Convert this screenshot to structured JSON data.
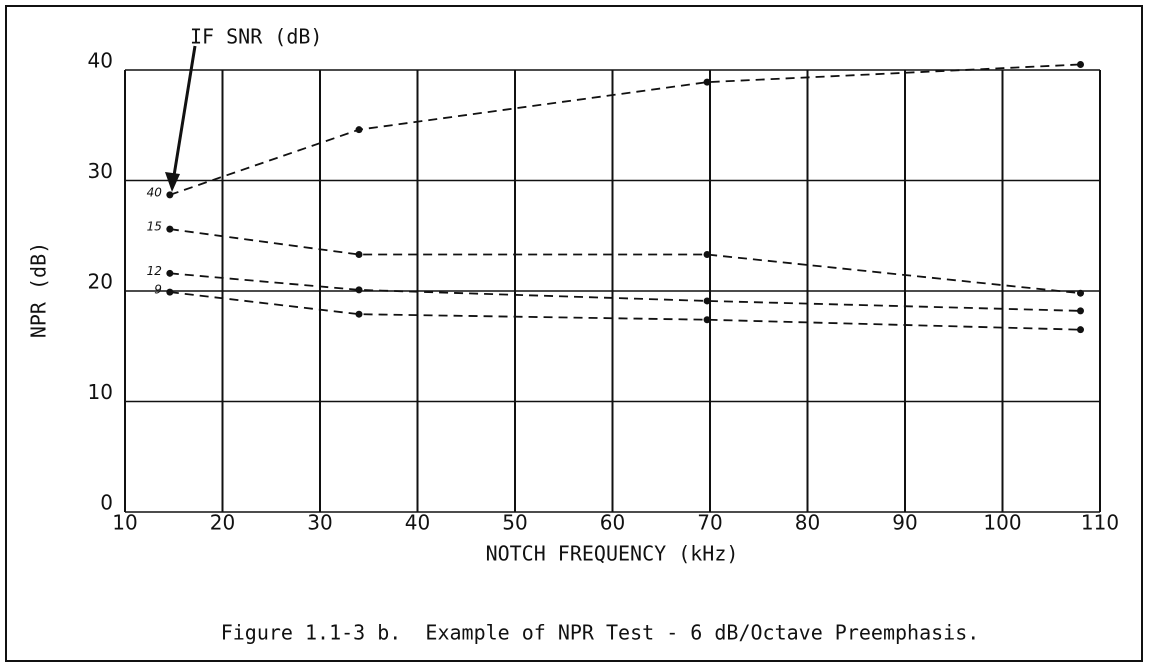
{
  "chart_data": {
    "type": "line",
    "annotation": "IF SNR (dB)",
    "xlabel": "NOTCH FREQUENCY (kHz)",
    "ylabel": "NPR (dB)",
    "caption": "Figure 1.1-3 b.  Example of NPR Test - 6 dB/Octave Preemphasis.",
    "xlim": [
      10,
      110
    ],
    "xticks": [
      10,
      20,
      30,
      40,
      50,
      60,
      70,
      80,
      90,
      100,
      110
    ],
    "ylim": [
      0,
      40
    ],
    "yticks": [
      0,
      10,
      20,
      30,
      40
    ],
    "grid": true,
    "series": [
      {
        "name": "40",
        "color": "#111111",
        "x": [
          14.6,
          34,
          69.7,
          108
        ],
        "values": [
          28.7,
          34.6,
          38.9,
          40.5
        ]
      },
      {
        "name": "15",
        "color": "#111111",
        "x": [
          14.6,
          34,
          69.7,
          108
        ],
        "values": [
          25.6,
          23.3,
          23.3,
          19.8
        ]
      },
      {
        "name": "12",
        "color": "#111111",
        "x": [
          14.6,
          34,
          69.7,
          108
        ],
        "values": [
          21.6,
          20.1,
          19.1,
          18.2
        ]
      },
      {
        "name": "9",
        "color": "#111111",
        "x": [
          14.6,
          34,
          69.7,
          108
        ],
        "values": [
          19.9,
          17.9,
          17.4,
          16.5
        ]
      }
    ]
  }
}
